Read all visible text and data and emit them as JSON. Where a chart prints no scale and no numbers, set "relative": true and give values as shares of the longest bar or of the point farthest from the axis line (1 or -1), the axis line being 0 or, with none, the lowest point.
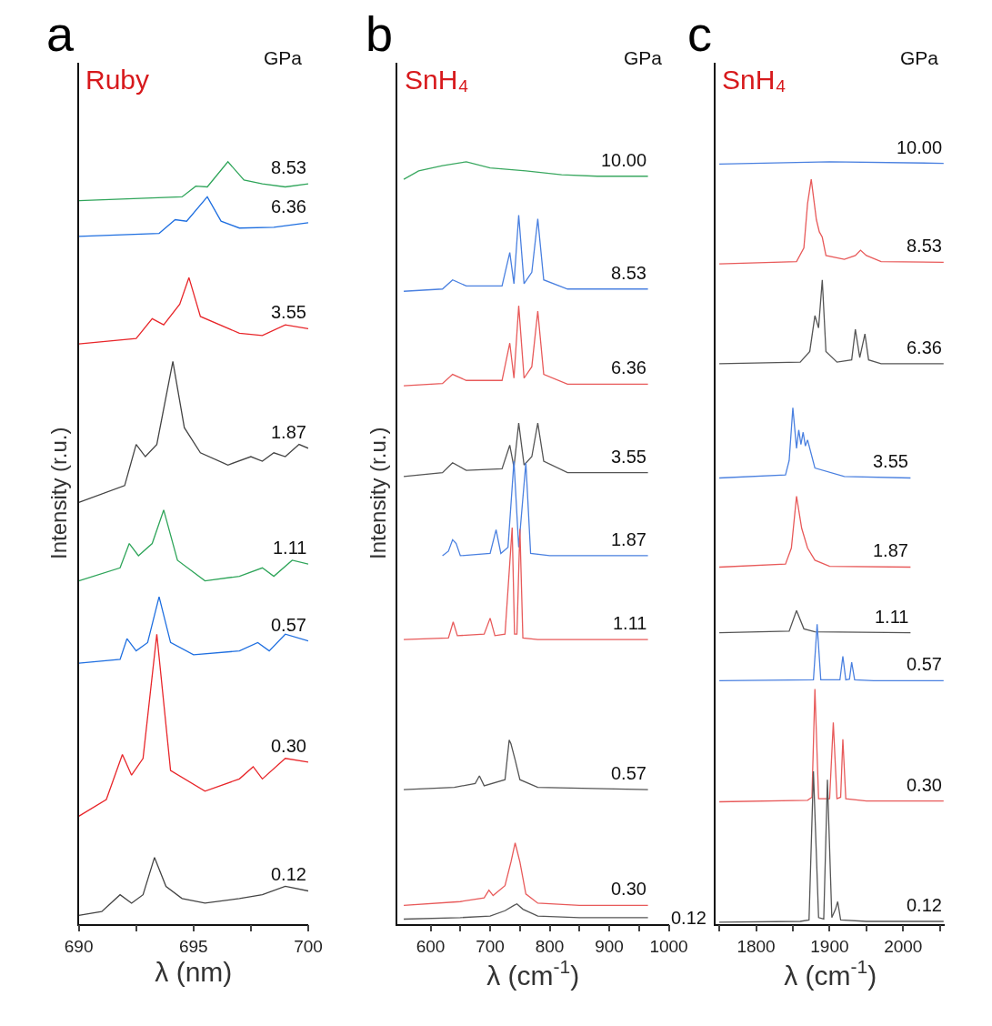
{
  "chart_data": [
    {
      "type": "line",
      "title": "Ruby",
      "xlabel": "λ (nm)",
      "ylabel": "Intensity (r.u.)",
      "legend_title": "GPa",
      "annotations": [
        "a"
      ],
      "relative": true,
      "xlim": [
        690,
        700
      ],
      "xticks": [
        690,
        {
          "value": 692.5,
          "label": null
        },
        695,
        {
          "value": 697.5,
          "label": null
        },
        700
      ],
      "series": [
        {
          "name": "0.12",
          "color": "#444444",
          "x": [
            690,
            691,
            691.8,
            692.3,
            692.8,
            693.3,
            693.8,
            694.5,
            695.5,
            697,
            698,
            699,
            700
          ],
          "values": [
            0.011,
            0.016,
            0.038,
            0.027,
            0.038,
            0.087,
            0.049,
            0.033,
            0.027,
            0.033,
            0.038,
            0.049,
            0.043
          ]
        },
        {
          "name": "0.30",
          "color": "#e8262a",
          "x": [
            690,
            691.2,
            691.9,
            692.3,
            692.8,
            693.4,
            694,
            695.5,
            697,
            697.6,
            698,
            699,
            700
          ],
          "values": [
            0.141,
            0.163,
            0.222,
            0.195,
            0.217,
            0.38,
            0.201,
            0.174,
            0.19,
            0.206,
            0.19,
            0.217,
            0.212
          ]
        },
        {
          "name": "0.57",
          "color": "#1f6fe0",
          "x": [
            690,
            691.8,
            692.1,
            692.5,
            693,
            693.5,
            694,
            695,
            697,
            697.8,
            698.3,
            699,
            700
          ],
          "values": [
            0.342,
            0.347,
            0.374,
            0.358,
            0.369,
            0.429,
            0.369,
            0.353,
            0.358,
            0.369,
            0.358,
            0.38,
            0.371
          ]
        },
        {
          "name": "1.11",
          "color": "#2fa55a",
          "x": [
            690,
            691.8,
            692.2,
            692.6,
            693.2,
            693.7,
            694.3,
            695.5,
            697,
            698,
            698.5,
            699.3,
            700
          ],
          "values": [
            0.45,
            0.467,
            0.499,
            0.483,
            0.499,
            0.543,
            0.477,
            0.45,
            0.456,
            0.467,
            0.456,
            0.477,
            0.472
          ]
        },
        {
          "name": "1.87",
          "color": "#444444",
          "x": [
            690,
            692,
            692.5,
            692.9,
            693.4,
            694.1,
            694.6,
            695.3,
            696.5,
            697.5,
            698,
            698.5,
            699,
            699.6,
            700
          ],
          "values": [
            0.553,
            0.575,
            0.629,
            0.613,
            0.629,
            0.738,
            0.651,
            0.618,
            0.602,
            0.613,
            0.607,
            0.618,
            0.613,
            0.629,
            0.624
          ]
        },
        {
          "name": "3.55",
          "color": "#e8262a",
          "x": [
            690,
            692.5,
            693.2,
            693.7,
            694.4,
            694.8,
            695.3,
            697,
            698,
            699,
            700
          ],
          "values": [
            0.761,
            0.768,
            0.794,
            0.786,
            0.813,
            0.848,
            0.797,
            0.775,
            0.772,
            0.786,
            0.781
          ]
        },
        {
          "name": "6.36",
          "color": "#1f6fe0",
          "x": [
            690,
            693.5,
            694.2,
            694.7,
            695.6,
            696.2,
            697,
            698.5,
            700
          ],
          "values": [
            0.902,
            0.906,
            0.924,
            0.922,
            0.954,
            0.922,
            0.913,
            0.914,
            0.92
          ]
        },
        {
          "name": "8.53",
          "color": "#2fa55a",
          "x": [
            690,
            694.5,
            695.1,
            695.6,
            696.5,
            697.2,
            698,
            699,
            700
          ],
          "values": [
            0.949,
            0.954,
            0.968,
            0.967,
            1,
            0.976,
            0.971,
            0.967,
            0.971
          ]
        }
      ]
    },
    {
      "type": "line",
      "title": "SnH₄",
      "xlabel": "λ (cm$^{-1}$)",
      "ylabel": "Intensity (r.u.)",
      "legend_title": "GPa",
      "annotations": [
        "b"
      ],
      "relative": true,
      "xlim": [
        544,
        1000
      ],
      "xticks": [
        600,
        {
          "value": 650,
          "label": null
        },
        700,
        {
          "value": 750,
          "label": null
        },
        800,
        {
          "value": 850,
          "label": null
        },
        900,
        {
          "value": 950,
          "label": null
        },
        1000
      ],
      "series": [
        {
          "name": "0.12",
          "color": "#555555",
          "x": [
            555,
            650,
            700,
            725,
            740,
            745,
            755,
            780,
            850,
            965
          ],
          "values": [
            0.006,
            0.008,
            0.01,
            0.017,
            0.024,
            0.026,
            0.019,
            0.01,
            0.008,
            0.008
          ]
        },
        {
          "name": "0.30",
          "color": "#e85a5a",
          "x": [
            555,
            650,
            690,
            698,
            705,
            725,
            735,
            742,
            750,
            760,
            780,
            850,
            965
          ],
          "values": [
            0.024,
            0.029,
            0.034,
            0.044,
            0.037,
            0.05,
            0.081,
            0.106,
            0.081,
            0.039,
            0.027,
            0.024,
            0.024
          ]
        },
        {
          "name": "0.57",
          "color": "#555555",
          "x": [
            555,
            640,
            675,
            682,
            690,
            725,
            732,
            735,
            738,
            742,
            750,
            780,
            965
          ],
          "values": [
            0.176,
            0.179,
            0.184,
            0.194,
            0.181,
            0.189,
            0.241,
            0.236,
            0.227,
            0.215,
            0.189,
            0.179,
            0.176
          ]
        },
        {
          "name": "1.11",
          "color": "#e85a5a",
          "x": [
            555,
            630,
            638,
            645,
            690,
            700,
            708,
            725,
            737,
            741,
            745,
            750,
            755,
            780,
            965
          ],
          "values": [
            0.373,
            0.375,
            0.396,
            0.378,
            0.38,
            0.401,
            0.378,
            0.38,
            0.52,
            0.38,
            0.38,
            0.518,
            0.375,
            0.373,
            0.373
          ]
        },
        {
          "name": "1.87",
          "color": "#4a80e0",
          "x": [
            620,
            630,
            637,
            643,
            650,
            700,
            710,
            718,
            730,
            740,
            748,
            760,
            768,
            800,
            965
          ],
          "values": [
            0.483,
            0.489,
            0.504,
            0.499,
            0.483,
            0.486,
            0.517,
            0.486,
            0.494,
            0.607,
            0.494,
            0.605,
            0.486,
            0.483,
            0.483
          ]
        },
        {
          "name": "3.55",
          "color": "#555555",
          "x": [
            555,
            620,
            637,
            660,
            720,
            733,
            740,
            748,
            757,
            770,
            780,
            790,
            830,
            965
          ],
          "values": [
            0.587,
            0.592,
            0.605,
            0.595,
            0.597,
            0.628,
            0.599,
            0.657,
            0.602,
            0.613,
            0.657,
            0.607,
            0.592,
            0.592
          ]
        },
        {
          "name": "6.36",
          "color": "#e85a5a",
          "x": [
            555,
            620,
            637,
            660,
            720,
            733,
            740,
            748,
            757,
            770,
            780,
            790,
            830,
            965
          ],
          "values": [
            0.706,
            0.709,
            0.721,
            0.713,
            0.713,
            0.762,
            0.716,
            0.811,
            0.716,
            0.731,
            0.804,
            0.721,
            0.708,
            0.708
          ]
        },
        {
          "name": "8.53",
          "color": "#4a80e0",
          "x": [
            555,
            620,
            637,
            660,
            720,
            733,
            740,
            748,
            757,
            770,
            780,
            790,
            830,
            965
          ],
          "values": [
            0.83,
            0.833,
            0.845,
            0.837,
            0.837,
            0.881,
            0.84,
            0.93,
            0.84,
            0.855,
            0.925,
            0.845,
            0.833,
            0.833
          ]
        },
        {
          "name": "10.00",
          "color": "#3aa860",
          "x": [
            555,
            580,
            620,
            660,
            700,
            760,
            820,
            880,
            930,
            965
          ],
          "values": [
            0.977,
            0.988,
            0.995,
            1,
            0.992,
            0.988,
            0.983,
            0.981,
            0.981,
            0.981
          ]
        }
      ]
    },
    {
      "type": "line",
      "title": "SnH₄",
      "xlabel": "λ (cm$^{-1}$)",
      "legend_title": "GPa",
      "annotations": [
        "c"
      ],
      "relative": true,
      "xlim": [
        1745,
        2057
      ],
      "xticks": [
        {
          "value": 1750,
          "label": null
        },
        1800,
        {
          "value": 1850,
          "label": null
        },
        1900,
        {
          "value": 1950,
          "label": null
        },
        2000,
        {
          "value": 2050,
          "label": null
        }
      ],
      "series": [
        {
          "name": "0.12",
          "color": "#555555",
          "x": [
            1750,
            1860,
            1872,
            1878,
            1885,
            1892,
            1897,
            1903,
            1908,
            1911,
            1915,
            1950,
            2055
          ],
          "values": [
            0.002,
            0.003,
            0.005,
            0.2,
            0.008,
            0.006,
            0.189,
            0.008,
            0.019,
            0.029,
            0.005,
            0.003,
            0.003
          ]
        },
        {
          "name": "0.30",
          "color": "#e85a5a",
          "x": [
            1750,
            1870,
            1876,
            1880,
            1885,
            1900,
            1905,
            1910,
            1915,
            1918,
            1922,
            1950,
            2055
          ],
          "values": [
            0.16,
            0.162,
            0.166,
            0.308,
            0.164,
            0.164,
            0.264,
            0.164,
            0.166,
            0.242,
            0.164,
            0.161,
            0.161
          ]
        },
        {
          "name": "0.57",
          "color": "#4a80e0",
          "x": [
            1750,
            1878,
            1883,
            1888,
            1914,
            1918,
            1922,
            1927,
            1930,
            1934,
            1960,
            2055
          ],
          "values": [
            0.319,
            0.32,
            0.393,
            0.32,
            0.32,
            0.351,
            0.32,
            0.321,
            0.343,
            0.32,
            0.319,
            0.319
          ]
        },
        {
          "name": "1.11",
          "color": "#555555",
          "x": [
            1750,
            1845,
            1855,
            1865,
            1880,
            2010
          ],
          "values": [
            0.382,
            0.384,
            0.411,
            0.387,
            0.383,
            0.382
          ]
        },
        {
          "name": "1.87",
          "color": "#e85a5a",
          "x": [
            1750,
            1840,
            1848,
            1855,
            1862,
            1870,
            1880,
            1900,
            2010
          ],
          "values": [
            0.468,
            0.472,
            0.493,
            0.561,
            0.519,
            0.493,
            0.477,
            0.469,
            0.468
          ]
        },
        {
          "name": "3.55",
          "color": "#4a80e0",
          "x": [
            1750,
            1840,
            1845,
            1850,
            1855,
            1858,
            1861,
            1864,
            1867,
            1870,
            1880,
            1920,
            2010
          ],
          "values": [
            0.585,
            0.589,
            0.608,
            0.677,
            0.624,
            0.648,
            0.629,
            0.645,
            0.627,
            0.635,
            0.598,
            0.587,
            0.585
          ]
        },
        {
          "name": "6.36",
          "color": "#555555",
          "x": [
            1750,
            1860,
            1873,
            1880,
            1885,
            1890,
            1895,
            1910,
            1930,
            1935,
            1941,
            1948,
            1953,
            1970,
            2055
          ],
          "values": [
            0.735,
            0.737,
            0.751,
            0.798,
            0.782,
            0.845,
            0.751,
            0.737,
            0.74,
            0.78,
            0.743,
            0.774,
            0.74,
            0.735,
            0.735
          ]
        },
        {
          "name": "8.53",
          "color": "#e85a5a",
          "x": [
            1750,
            1855,
            1865,
            1870,
            1875,
            1882,
            1886,
            1890,
            1895,
            1920,
            1935,
            1942,
            1950,
            1970,
            2055
          ],
          "values": [
            0.866,
            0.869,
            0.887,
            0.945,
            0.977,
            0.924,
            0.908,
            0.901,
            0.877,
            0.872,
            0.877,
            0.884,
            0.877,
            0.869,
            0.868
          ]
        },
        {
          "name": "10.00",
          "color": "#4a80e0",
          "x": [
            1750,
            1900,
            2055
          ],
          "values": [
            0.997,
            1,
            0.998
          ]
        }
      ]
    }
  ]
}
